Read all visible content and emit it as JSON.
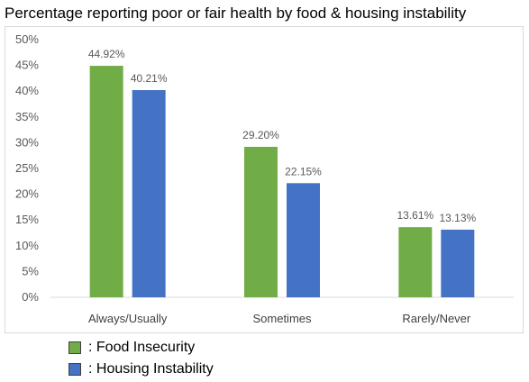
{
  "title": "Percentage reporting poor or fair health by food & housing instability",
  "chart_data": {
    "type": "bar",
    "categories": [
      "Always/Usually",
      "Sometimes",
      "Rarely/Never"
    ],
    "series": [
      {
        "name": "Food Insecurity",
        "values": [
          44.92,
          29.2,
          13.61
        ],
        "labels": [
          "44.92%",
          "29.20%",
          "13.61%"
        ],
        "color": "#70ad47"
      },
      {
        "name": "Housing Instability",
        "values": [
          40.21,
          22.15,
          13.13
        ],
        "labels": [
          "40.21%",
          "22.15%",
          "13.13%"
        ],
        "color": "#4472c4"
      }
    ],
    "yticks": [
      "0%",
      "5%",
      "10%",
      "15%",
      "20%",
      "25%",
      "30%",
      "35%",
      "40%",
      "45%",
      "50%"
    ],
    "ylim": [
      0,
      50
    ],
    "grid": false
  },
  "legend": {
    "items": [
      {
        "label": ": Food Insecurity",
        "color": "#70ad47"
      },
      {
        "label": ": Housing Instability",
        "color": "#4472c4"
      }
    ]
  }
}
